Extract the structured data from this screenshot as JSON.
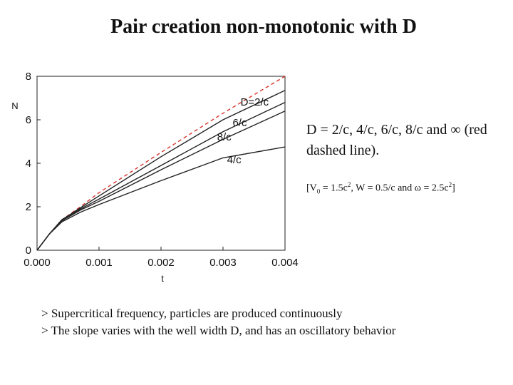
{
  "slide": {
    "title": "Pair creation non-monotonic with D",
    "description": "D = 2/c, 4/c, 6/c, 8/c and ∞ (red dashed line).",
    "params": {
      "open": "[V",
      "v_sub": "0",
      "eq1": " = 1.5c",
      "sup1": "2",
      "mid": ", W = 0.5/c and ω = 2.5c",
      "sup2": "2",
      "close": "]"
    },
    "notes": [
      "> Supercritical frequency, particles are produced continuously",
      "> The slope varies with the well width D, and has an oscillatory behavior"
    ]
  },
  "chart_data": {
    "type": "line",
    "xlabel": "t",
    "ylabel": "N",
    "xlim": [
      0,
      0.004
    ],
    "ylim": [
      0,
      8
    ],
    "xticks": [
      0,
      0.001,
      0.002,
      0.003,
      0.004
    ],
    "xtick_labels": [
      "0.000",
      "0.001",
      "0.002",
      "0.003",
      "0.004"
    ],
    "yticks": [
      0,
      2,
      4,
      6,
      8
    ],
    "ytick_labels": [
      "0",
      "2",
      "4",
      "6",
      "8"
    ],
    "series": [
      {
        "name": "∞",
        "style": "dashed",
        "color": "#d9342b",
        "x": [
          0,
          0.0002,
          0.0004,
          0.0007,
          0.001,
          0.002,
          0.003,
          0.004
        ],
        "y": [
          0,
          0.75,
          1.4,
          2.0,
          2.65,
          4.5,
          6.3,
          8.0
        ]
      },
      {
        "name": "D=2/c",
        "label": "D=2/c",
        "style": "solid",
        "color": "#222222",
        "x": [
          0,
          0.0002,
          0.0004,
          0.0007,
          0.001,
          0.002,
          0.003,
          0.004
        ],
        "y": [
          0,
          0.75,
          1.4,
          1.95,
          2.5,
          4.3,
          6.0,
          7.35
        ]
      },
      {
        "name": "6/c",
        "label": "6/c",
        "style": "solid",
        "color": "#222222",
        "x": [
          0,
          0.0002,
          0.0004,
          0.0007,
          0.001,
          0.002,
          0.003,
          0.004
        ],
        "y": [
          0,
          0.75,
          1.4,
          1.9,
          2.35,
          3.9,
          5.45,
          6.8
        ]
      },
      {
        "name": "8/c",
        "label": "8/c",
        "style": "solid",
        "color": "#222222",
        "x": [
          0,
          0.0002,
          0.0004,
          0.0007,
          0.001,
          0.002,
          0.003,
          0.004
        ],
        "y": [
          0,
          0.75,
          1.35,
          1.85,
          2.25,
          3.7,
          5.1,
          6.4
        ]
      },
      {
        "name": "4/c",
        "label": "4/c",
        "style": "solid",
        "color": "#222222",
        "x": [
          0,
          0.0002,
          0.0004,
          0.0007,
          0.001,
          0.002,
          0.003,
          0.004
        ],
        "y": [
          0,
          0.75,
          1.3,
          1.75,
          2.1,
          3.2,
          4.25,
          4.75
        ]
      }
    ]
  }
}
